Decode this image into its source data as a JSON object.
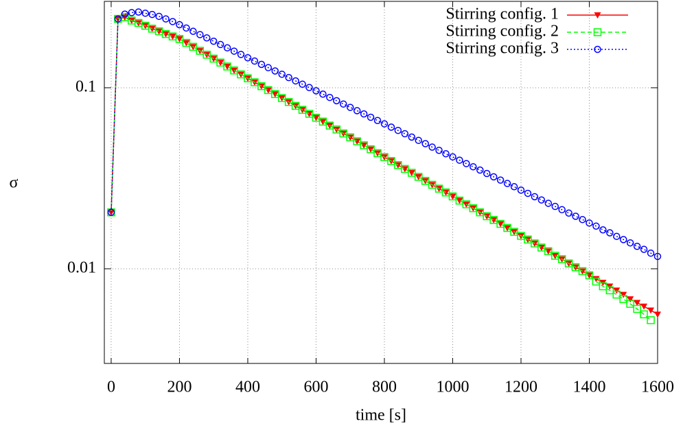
{
  "chart_data": {
    "type": "line",
    "xlabel": "time [s]",
    "ylabel": "σ",
    "xlim": [
      -20,
      1600
    ],
    "ylim": [
      0.003,
      0.3
    ],
    "log_y": true,
    "grid": true,
    "legend": "top right",
    "xticks": [
      0,
      200,
      400,
      600,
      800,
      1000,
      1200,
      1400,
      1600
    ],
    "yticks": [
      0.01,
      0.1
    ],
    "x": [
      0,
      20,
      40,
      60,
      80,
      100,
      120,
      140,
      160,
      180,
      200,
      220,
      240,
      260,
      280,
      300,
      320,
      340,
      360,
      380,
      400,
      420,
      440,
      460,
      480,
      500,
      520,
      540,
      560,
      580,
      600,
      620,
      640,
      660,
      680,
      700,
      720,
      740,
      760,
      780,
      800,
      820,
      840,
      860,
      880,
      900,
      920,
      940,
      960,
      980,
      1000,
      1020,
      1040,
      1060,
      1080,
      1100,
      1120,
      1140,
      1160,
      1180,
      1200,
      1220,
      1240,
      1260,
      1280,
      1300,
      1320,
      1340,
      1360,
      1380,
      1400,
      1420,
      1440,
      1460,
      1480,
      1500,
      1520,
      1540,
      1560,
      1580,
      1600
    ],
    "series": [
      {
        "name": "Stirring config. 1",
        "color": "#ff0000",
        "style": "solid",
        "marker": "triangle-down",
        "values": [
          0.0205,
          0.24,
          0.245,
          0.235,
          0.228,
          0.22,
          0.212,
          0.205,
          0.198,
          0.192,
          0.186,
          0.1769,
          0.1683,
          0.16,
          0.1522,
          0.1448,
          0.1377,
          0.131,
          0.1246,
          0.1185,
          0.1127,
          0.1072,
          0.102,
          0.097,
          0.0922,
          0.0877,
          0.0834,
          0.0794,
          0.0755,
          0.0718,
          0.0683,
          0.065,
          0.0618,
          0.0588,
          0.0559,
          0.0532,
          0.0506,
          0.0481,
          0.0457,
          0.0435,
          0.0414,
          0.0394,
          0.0374,
          0.0356,
          0.0339,
          0.0322,
          0.0306,
          0.0291,
          0.0277,
          0.0264,
          0.0251,
          0.0238,
          0.0227,
          0.0216,
          0.0205,
          0.0195,
          0.0186,
          0.0177,
          0.0168,
          0.016,
          0.0152,
          0.0145,
          0.0138,
          0.0131,
          0.0125,
          0.0118,
          0.0113,
          0.0107,
          0.0102,
          0.0097,
          0.0092,
          0.0088,
          0.0084,
          0.008,
          0.0076,
          0.0072,
          0.0068,
          0.0065,
          0.0062,
          0.0059,
          0.0056
        ]
      },
      {
        "name": "Stirring config. 2",
        "color": "#00ff00",
        "style": "dashed",
        "marker": "square",
        "values": [
          0.0205,
          0.24,
          0.245,
          0.235,
          0.228,
          0.22,
          0.212,
          0.205,
          0.198,
          0.192,
          0.186,
          0.1769,
          0.1683,
          0.16,
          0.1522,
          0.1448,
          0.1377,
          0.131,
          0.1246,
          0.1185,
          0.1127,
          0.1072,
          0.102,
          0.097,
          0.0922,
          0.0877,
          0.0834,
          0.0794,
          0.0755,
          0.0718,
          0.0683,
          0.065,
          0.0618,
          0.0588,
          0.0559,
          0.0532,
          0.0506,
          0.0481,
          0.0457,
          0.0435,
          0.0414,
          0.0394,
          0.0374,
          0.0356,
          0.0339,
          0.0322,
          0.0306,
          0.0291,
          0.0277,
          0.0264,
          0.0251,
          0.0238,
          0.0227,
          0.0216,
          0.0205,
          0.0195,
          0.0186,
          0.0177,
          0.0168,
          0.016,
          0.0152,
          0.0145,
          0.0138,
          0.0131,
          0.0125,
          0.0118,
          0.0113,
          0.0107,
          0.0102,
          0.0097,
          0.0092,
          0.0085,
          0.008,
          0.0076,
          0.0072,
          0.0068,
          0.0064,
          0.006,
          0.0056,
          0.0052,
          null
        ]
      },
      {
        "name": "Stirring config. 3",
        "color": "#0000ff",
        "style": "dotted",
        "marker": "circle",
        "values": [
          0.0205,
          0.24,
          0.255,
          0.26,
          0.262,
          0.258,
          0.254,
          0.248,
          0.24,
          0.232,
          0.223,
          0.2138,
          0.205,
          0.1966,
          0.1885,
          0.1807,
          0.1733,
          0.1661,
          0.1593,
          0.1527,
          0.1464,
          0.1404,
          0.1346,
          0.1291,
          0.1238,
          0.1187,
          0.1138,
          0.1091,
          0.1046,
          0.1003,
          0.0962,
          0.0922,
          0.0884,
          0.0848,
          0.0813,
          0.0779,
          0.0747,
          0.0717,
          0.0687,
          0.0659,
          0.0632,
          0.0606,
          0.0581,
          0.0557,
          0.0534,
          0.0512,
          0.0491,
          0.047,
          0.0451,
          0.0432,
          0.0415,
          0.0398,
          0.0381,
          0.0366,
          0.0351,
          0.0336,
          0.0322,
          0.0309,
          0.0296,
          0.0284,
          0.0272,
          0.0261,
          0.025,
          0.024,
          0.023,
          0.0221,
          0.0212,
          0.0203,
          0.0195,
          0.0187,
          0.0179,
          0.0172,
          0.0164,
          0.0158,
          0.0151,
          0.0145,
          0.0139,
          0.0133,
          0.0128,
          0.0122,
          0.0117
        ]
      }
    ]
  }
}
